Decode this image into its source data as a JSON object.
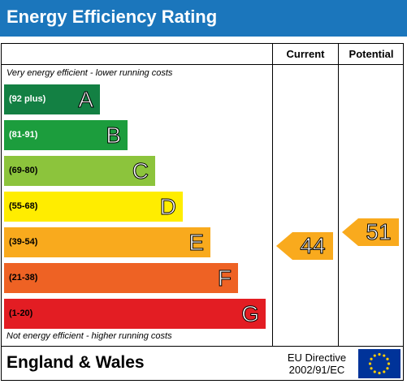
{
  "title": "Energy Efficiency Rating",
  "columns": {
    "current": "Current",
    "potential": "Potential"
  },
  "top_note": "Very energy efficient - lower running costs",
  "bottom_note": "Not energy efficient - higher running costs",
  "bands": [
    {
      "range": "(92 plus)",
      "letter": "A",
      "color": "#138043",
      "range_color": "#ffffff"
    },
    {
      "range": "(81-91)",
      "letter": "B",
      "color": "#1c9d3d",
      "range_color": "#ffffff"
    },
    {
      "range": "(69-80)",
      "letter": "C",
      "color": "#8cc43c",
      "range_color": "#000000"
    },
    {
      "range": "(55-68)",
      "letter": "D",
      "color": "#ffed00",
      "range_color": "#000000"
    },
    {
      "range": "(39-54)",
      "letter": "E",
      "color": "#f9aa1d",
      "range_color": "#000000"
    },
    {
      "range": "(21-38)",
      "letter": "F",
      "color": "#ee6224",
      "range_color": "#000000"
    },
    {
      "range": "(1-20)",
      "letter": "G",
      "color": "#e31d23",
      "range_color": "#000000"
    }
  ],
  "ratings": {
    "current": {
      "value": "44",
      "band": "E",
      "color": "#f9aa1d"
    },
    "potential": {
      "value": "51",
      "band": "E",
      "color": "#f9aa1d"
    }
  },
  "footer": {
    "region": "England & Wales",
    "directive_line1": "EU Directive",
    "directive_line2": "2002/91/EC"
  },
  "colors": {
    "header_bg": "#1b76bc",
    "eu_flag_bg": "#003399",
    "eu_star": "#ffcc00"
  },
  "icons": {
    "eu_flag": "eu-flag-icon"
  }
}
